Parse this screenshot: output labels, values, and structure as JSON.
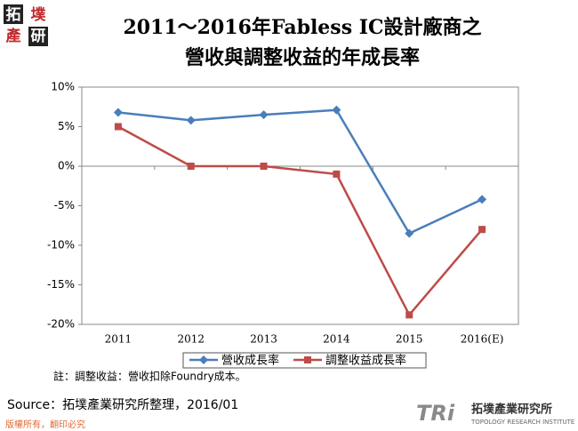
{
  "chart_data": {
    "type": "line",
    "title": [
      "2011～2016年Fabless IC設計廠商之",
      "營收與調整收益的年成長率"
    ],
    "categories": [
      "2011",
      "2012",
      "2013",
      "2014",
      "2015",
      "2016(E)"
    ],
    "series": [
      {
        "name": "營收成長率",
        "color": "#4a7ebb",
        "marker": "diamond",
        "values": [
          6.8,
          5.8,
          6.5,
          7.1,
          -8.5,
          -4.2
        ]
      },
      {
        "name": "調整收益成長率",
        "color": "#be4b48",
        "marker": "square",
        "values": [
          5.0,
          0,
          0,
          -1.0,
          -18.8,
          -8.0
        ]
      }
    ],
    "ylim": [
      -20,
      10
    ],
    "yticks": [
      {
        "value": -20,
        "label": "-20%"
      },
      {
        "value": -15,
        "label": "-15%"
      },
      {
        "value": -10,
        "label": "-10%"
      },
      {
        "value": -5,
        "label": "-5%"
      },
      {
        "value": 0,
        "label": "0%"
      },
      {
        "value": 5,
        "label": "5%"
      },
      {
        "value": 10,
        "label": "10%"
      }
    ],
    "grid": false,
    "legend": "bottom"
  },
  "logo": [
    "拓",
    "墣",
    "產",
    "研"
  ],
  "note": "註：調整收益：營收扣除Foundry成本。",
  "source": "Source：拓墣產業研究所整理，2016/01",
  "footer": "版權所有，翻印必究",
  "brand": {
    "mark": "TRi",
    "name": "拓墣產業研究所",
    "english": "TOPOLOGY RESEARCH INSTITUTE"
  }
}
